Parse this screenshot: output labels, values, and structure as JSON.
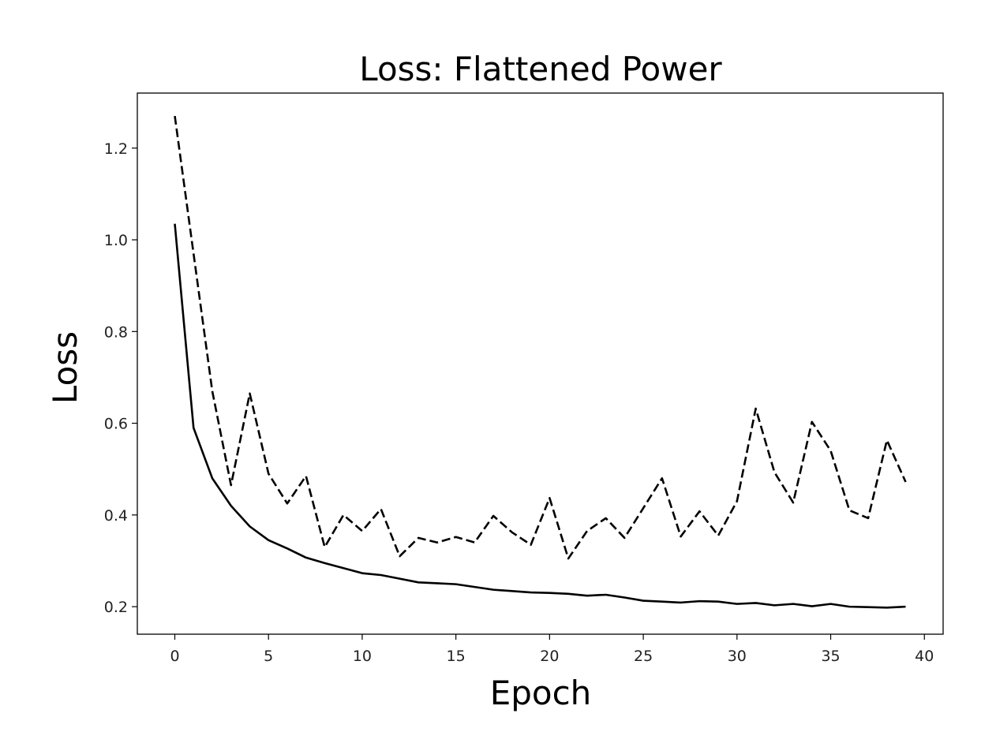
{
  "chart_data": {
    "type": "line",
    "title": "Loss: Flattened Power",
    "xlabel": "Epoch",
    "ylabel": "Loss",
    "xlim": [
      -2,
      41
    ],
    "ylim": [
      0.14,
      1.32
    ],
    "xticks": [
      0,
      5,
      10,
      15,
      20,
      25,
      30,
      35,
      40
    ],
    "yticks": [
      0.2,
      0.4,
      0.6,
      0.8,
      1.0,
      1.2
    ],
    "xtick_labels": [
      "0",
      "5",
      "10",
      "15",
      "20",
      "25",
      "30",
      "35",
      "40"
    ],
    "ytick_labels": [
      "0.2",
      "0.4",
      "0.6",
      "0.8",
      "1.0",
      "1.2"
    ],
    "grid": false,
    "legend": "none",
    "x": [
      0,
      1,
      2,
      3,
      4,
      5,
      6,
      7,
      8,
      9,
      10,
      11,
      12,
      13,
      14,
      15,
      16,
      17,
      18,
      19,
      20,
      21,
      22,
      23,
      24,
      25,
      26,
      27,
      28,
      29,
      30,
      31,
      32,
      33,
      34,
      35,
      36,
      37,
      38,
      39
    ],
    "series": [
      {
        "style": "solid",
        "color": "#000000",
        "values": [
          1.035,
          0.59,
          0.48,
          0.42,
          0.375,
          0.345,
          0.327,
          0.307,
          0.295,
          0.284,
          0.273,
          0.269,
          0.261,
          0.253,
          0.251,
          0.249,
          0.243,
          0.237,
          0.234,
          0.231,
          0.23,
          0.228,
          0.224,
          0.226,
          0.22,
          0.213,
          0.211,
          0.209,
          0.212,
          0.211,
          0.206,
          0.208,
          0.203,
          0.206,
          0.201,
          0.206,
          0.2,
          0.199,
          0.198,
          0.2
        ]
      },
      {
        "style": "dashed",
        "color": "#000000",
        "values": [
          1.27,
          0.97,
          0.67,
          0.465,
          0.665,
          0.49,
          0.425,
          0.485,
          0.33,
          0.4,
          0.365,
          0.413,
          0.31,
          0.35,
          0.34,
          0.352,
          0.34,
          0.398,
          0.362,
          0.335,
          0.437,
          0.305,
          0.365,
          0.393,
          0.35,
          0.415,
          0.48,
          0.353,
          0.408,
          0.355,
          0.43,
          0.632,
          0.493,
          0.427,
          0.603,
          0.54,
          0.41,
          0.393,
          0.563,
          0.472
        ]
      }
    ]
  }
}
